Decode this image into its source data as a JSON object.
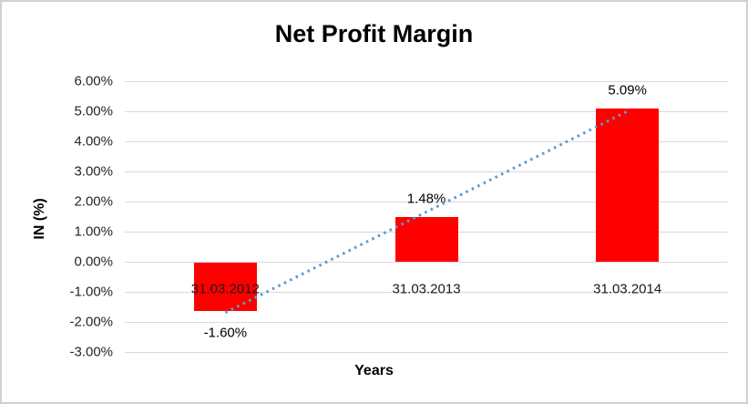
{
  "chart_data": {
    "type": "bar",
    "title": "Net Profit Margin",
    "xlabel": "Years",
    "ylabel": "IN (%)",
    "categories": [
      "31.03.2012",
      "31.03.2013",
      "31.03.2014"
    ],
    "values": [
      -1.6,
      1.48,
      5.09
    ],
    "data_labels": [
      "-1.60%",
      "1.48%",
      "5.09%"
    ],
    "ylim": [
      -3,
      6
    ],
    "ytick_step": 1,
    "ytick_labels": [
      "6.00%",
      "5.00%",
      "4.00%",
      "3.00%",
      "2.00%",
      "1.00%",
      "0.00%",
      "-1.00%",
      "-2.00%",
      "-3.00%"
    ],
    "grid": true,
    "legend": "none",
    "bar_color": "#ff0000",
    "gridline_color": "#d9d9d9",
    "trendline": {
      "type": "linear",
      "style": "dotted",
      "color": "#5b9bd5",
      "fit_endpoint_values": [
        -1.69,
        5.0
      ]
    }
  }
}
